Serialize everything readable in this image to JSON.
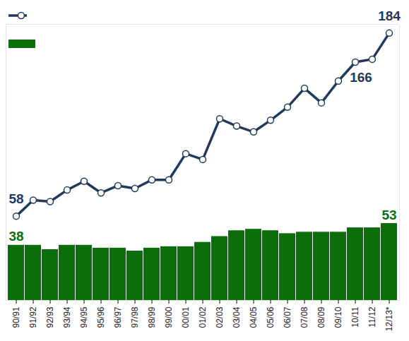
{
  "chart_data": {
    "type": "bar",
    "categories": [
      "90/91",
      "91/92",
      "92/93",
      "93/94",
      "94/95",
      "95/96",
      "96/97",
      "97/98",
      "98/99",
      "99/00",
      "00/01",
      "01/02",
      "02/03",
      "03/04",
      "04/05",
      "05/06",
      "06/07",
      "07/08",
      "08/09",
      "09/10",
      "10/11",
      "11/12",
      "12/13*"
    ],
    "series": [
      {
        "type": "line",
        "color": "#213a5c",
        "marker": "circle",
        "values": [
          58,
          69,
          68,
          76,
          82,
          74,
          79,
          77,
          83,
          83,
          101,
          97,
          125,
          120,
          116,
          124,
          133,
          146,
          136,
          151,
          164,
          166,
          184
        ],
        "value_labels": [
          "58",
          null,
          null,
          null,
          null,
          null,
          null,
          null,
          null,
          null,
          null,
          null,
          null,
          null,
          null,
          null,
          null,
          null,
          null,
          null,
          null,
          "166",
          "184"
        ]
      },
      {
        "type": "bar",
        "color": "#0b6e0b",
        "values": [
          38,
          38,
          35,
          38,
          38,
          36,
          36,
          34,
          36,
          37,
          37,
          40,
          44,
          48,
          49,
          48,
          46,
          47,
          47,
          47,
          50,
          50,
          53
        ],
        "value_labels": [
          "38",
          null,
          null,
          null,
          null,
          null,
          null,
          null,
          null,
          null,
          null,
          null,
          null,
          null,
          null,
          null,
          null,
          null,
          null,
          null,
          null,
          null,
          "53"
        ]
      }
    ],
    "ylim": [
      0,
      190
    ],
    "yticks": [],
    "tick_labels": "x",
    "legend": "top-left"
  }
}
